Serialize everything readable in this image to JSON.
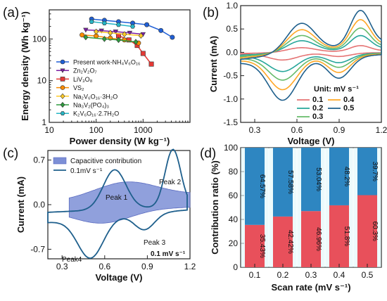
{
  "panels": {
    "a": {
      "label": "(a)"
    },
    "b": {
      "label": "(b)"
    },
    "c": {
      "label": "(c)"
    },
    "d": {
      "label": "(d)"
    }
  },
  "chart_data": [
    {
      "id": "a",
      "type": "scatter",
      "scale": "log-log",
      "xlabel": "Power density (W kg⁻¹)",
      "ylabel": "Energy density (Wh kg⁻¹)",
      "xlim": [
        10,
        10000
      ],
      "ylim": [
        1,
        500
      ],
      "x_ticks": [
        "10",
        "100",
        "1000"
      ],
      "y_ticks": [
        "1",
        "10",
        "100"
      ],
      "legend_position": "bottom-right",
      "series": [
        {
          "name": "Present work-NH₄V₆O₁₆",
          "color": "#1f5fd6",
          "marker": "circle",
          "x": [
            80,
            150,
            300,
            600,
            1200,
            2400,
            4200
          ],
          "y": [
            300,
            280,
            260,
            240,
            220,
            160,
            110
          ]
        },
        {
          "name": "Zn₂V₂O₇",
          "color": "#7b1fa2",
          "marker": "triangle-down",
          "x": [
            60,
            130,
            260,
            520,
            1000
          ],
          "y": [
            165,
            158,
            150,
            140,
            130
          ]
        },
        {
          "name": "LiV₃O₈",
          "color": "#e53935",
          "marker": "square",
          "x": [
            300,
            500,
            750,
            1000,
            1500
          ],
          "y": [
            120,
            95,
            70,
            45,
            25
          ]
        },
        {
          "name": "VS₂",
          "color": "#fb8c00",
          "marker": "circle",
          "x": [
            50,
            100,
            200,
            400,
            800
          ],
          "y": [
            125,
            118,
            105,
            95,
            80
          ]
        },
        {
          "name": "Na₂V₆O₁₆·3H₂O",
          "color": "#ffca28",
          "marker": "diamond",
          "x": [
            100,
            200,
            400,
            900
          ],
          "y": [
            150,
            140,
            130,
            120
          ]
        },
        {
          "name": "Na₃V₂(PO₄)₃",
          "color": "#2e9b3e",
          "marker": "diamond",
          "x": [
            60,
            150,
            300,
            700
          ],
          "y": [
            110,
            100,
            95,
            85
          ]
        },
        {
          "name": "K₂V₆O₁₆·2.7H₂O",
          "color": "#26b5c5",
          "marker": "hexagon",
          "x": [
            80,
            150,
            300,
            600
          ],
          "y": [
            260,
            240,
            220,
            200
          ]
        }
      ]
    },
    {
      "id": "b",
      "type": "line",
      "xlabel": "Voltage (V)",
      "ylabel": "Current (mA)",
      "xlim": [
        0.2,
        1.2
      ],
      "ylim": [
        -1.5,
        1.0
      ],
      "x_ticks": [
        "0.3",
        "0.6",
        "0.9",
        "1.2"
      ],
      "y_ticks": [
        "-1.5",
        "-1.0",
        "-0.5",
        "0.0",
        "0.5",
        "1.0"
      ],
      "legend_title": "Unit: mV s⁻¹",
      "legend_position": "bottom-right",
      "series": [
        {
          "name": "0.1",
          "color": "#e57373",
          "scale": 0.16
        },
        {
          "name": "0.2",
          "color": "#26a69a",
          "scale": 0.4
        },
        {
          "name": "0.3",
          "color": "#66bb6a",
          "scale": 0.58
        },
        {
          "name": "0.4",
          "color": "#ffa726",
          "scale": 0.78
        },
        {
          "name": "0.5",
          "color": "#1e5f8c",
          "scale": 1.0
        }
      ]
    },
    {
      "id": "c",
      "type": "area",
      "xlabel": "Voltage (V)",
      "ylabel": "Current (mA)",
      "xlim": [
        0.2,
        1.2
      ],
      "ylim": [
        -0.85,
        0.85
      ],
      "x_ticks": [
        "0.3",
        "0.6",
        "0.9",
        "1.2"
      ],
      "y_ticks": [
        "-0.7",
        "0.0",
        "0.7"
      ],
      "legend_position": "top-left",
      "legend": [
        "Capacitive contribution",
        "0.1mV s⁻¹"
      ],
      "annotations": [
        "Peak 1",
        "Peak 2",
        "Peak 3",
        "Peak4",
        "0.1 mV s⁻¹"
      ],
      "colors": {
        "area": "#7d8fd6",
        "line": "#1e5f8c"
      }
    },
    {
      "id": "d",
      "type": "bar",
      "stacked": true,
      "xlabel": "Scan rate (mV s⁻¹)",
      "ylabel": "Contribution ratio (%)",
      "ylim": [
        0,
        100
      ],
      "y_ticks": [
        "0",
        "20",
        "40",
        "60",
        "80",
        "100"
      ],
      "categories": [
        "0.1",
        "0.2",
        "0.3",
        "0.4",
        "0.5"
      ],
      "series": [
        {
          "color": "#e8505b",
          "values": [
            35.43,
            42.42,
            46.96,
            51.8,
            60.3
          ],
          "labels": [
            "35.43%",
            "42.42%",
            "46.96%",
            "51.8%",
            "60.3%"
          ]
        },
        {
          "color": "#2e86c1",
          "values": [
            64.57,
            57.58,
            53.04,
            48.2,
            39.7
          ],
          "labels": [
            "64.57%",
            "57.58%",
            "53.04%",
            "48.2%",
            "39.7%"
          ]
        }
      ]
    }
  ]
}
